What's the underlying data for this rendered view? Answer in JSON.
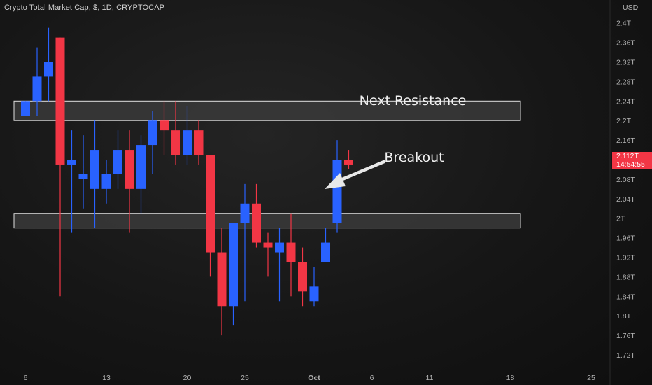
{
  "header": {
    "title": "Crypto Total Market Cap, $, 1D, CRYPTOCAP"
  },
  "currency_label": "USD",
  "last_price": {
    "value": "2.112T",
    "countdown": "14:54:55",
    "color": "#f23645"
  },
  "colors": {
    "up": "#2962ff",
    "down": "#f23645",
    "background": "#131313",
    "zone_fill": "#3a3a3a",
    "zone_border": "#e0e0e0"
  },
  "annotations": {
    "resistance_label": "Next Resistance",
    "breakout_label": "Breakout"
  },
  "chart_data": {
    "type": "candlestick",
    "title": "Crypto Total Market Cap, $, 1D, CRYPTOCAP",
    "xlabel": "",
    "ylabel": "",
    "ylim": [
      1.696,
      2.405
    ],
    "y_ticks": [
      "1.72T",
      "1.76T",
      "1.8T",
      "1.84T",
      "1.88T",
      "1.92T",
      "1.96T",
      "2T",
      "2.04T",
      "2.08T",
      "2.12T",
      "2.16T",
      "2.2T",
      "2.24T",
      "2.28T",
      "2.32T",
      "2.36T",
      "2.4T"
    ],
    "y_tick_values": [
      1.72,
      1.76,
      1.8,
      1.84,
      1.88,
      1.92,
      1.96,
      2.0,
      2.04,
      2.08,
      2.12,
      2.16,
      2.2,
      2.24,
      2.28,
      2.32,
      2.36,
      2.4
    ],
    "x_ticks": [
      "6",
      "13",
      "20",
      "25",
      "Oct",
      "6",
      "11",
      "18",
      "25"
    ],
    "x_tick_bar_index": [
      0,
      7,
      14,
      19,
      25,
      30,
      35,
      42,
      49
    ],
    "first_bar_index": -1,
    "candles": [
      {
        "o": 2.21,
        "h": 2.24,
        "l": 2.21,
        "c": 2.24
      },
      {
        "o": 2.24,
        "h": 2.35,
        "l": 2.21,
        "c": 2.29
      },
      {
        "o": 2.29,
        "h": 2.39,
        "l": 2.24,
        "c": 2.32
      },
      {
        "o": 2.37,
        "h": 2.37,
        "l": 1.84,
        "c": 2.11
      },
      {
        "o": 2.11,
        "h": 2.18,
        "l": 1.97,
        "c": 2.12
      },
      {
        "o": 2.08,
        "h": 2.17,
        "l": 2.02,
        "c": 2.09
      },
      {
        "o": 2.06,
        "h": 2.2,
        "l": 1.98,
        "c": 2.14
      },
      {
        "o": 2.06,
        "h": 2.12,
        "l": 2.03,
        "c": 2.09
      },
      {
        "o": 2.09,
        "h": 2.18,
        "l": 2.06,
        "c": 2.14
      },
      {
        "o": 2.14,
        "h": 2.18,
        "l": 1.97,
        "c": 2.06
      },
      {
        "o": 2.06,
        "h": 2.17,
        "l": 2.01,
        "c": 2.15
      },
      {
        "o": 2.15,
        "h": 2.22,
        "l": 2.09,
        "c": 2.2
      },
      {
        "o": 2.2,
        "h": 2.24,
        "l": 2.13,
        "c": 2.18
      },
      {
        "o": 2.18,
        "h": 2.24,
        "l": 2.11,
        "c": 2.13
      },
      {
        "o": 2.13,
        "h": 2.23,
        "l": 2.11,
        "c": 2.18
      },
      {
        "o": 2.18,
        "h": 2.2,
        "l": 2.11,
        "c": 2.13
      },
      {
        "o": 2.13,
        "h": 2.13,
        "l": 1.88,
        "c": 1.93
      },
      {
        "o": 1.93,
        "h": 1.98,
        "l": 1.76,
        "c": 1.82
      },
      {
        "o": 1.82,
        "h": 1.99,
        "l": 1.78,
        "c": 1.99
      },
      {
        "o": 1.99,
        "h": 2.07,
        "l": 1.83,
        "c": 2.03
      },
      {
        "o": 2.03,
        "h": 2.07,
        "l": 1.94,
        "c": 1.95
      },
      {
        "o": 1.95,
        "h": 1.97,
        "l": 1.88,
        "c": 1.94
      },
      {
        "o": 1.93,
        "h": 1.98,
        "l": 1.83,
        "c": 1.95
      },
      {
        "o": 1.95,
        "h": 2.01,
        "l": 1.84,
        "c": 1.91
      },
      {
        "o": 1.91,
        "h": 1.94,
        "l": 1.82,
        "c": 1.85
      },
      {
        "o": 1.83,
        "h": 1.9,
        "l": 1.82,
        "c": 1.86
      },
      {
        "o": 1.91,
        "h": 1.98,
        "l": 1.91,
        "c": 1.95
      },
      {
        "o": 1.99,
        "h": 2.16,
        "l": 1.97,
        "c": 2.12
      },
      {
        "o": 2.12,
        "h": 2.14,
        "l": 2.1,
        "c": 2.11
      }
    ],
    "zones": [
      {
        "name": "Next Resistance",
        "y_low": 2.2,
        "y_high": 2.24
      },
      {
        "name": "",
        "y_low": 1.98,
        "y_high": 2.01
      }
    ]
  }
}
